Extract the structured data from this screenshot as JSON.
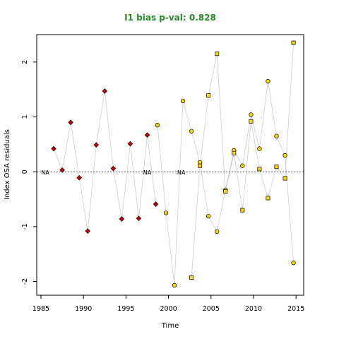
{
  "chart_data": {
    "type": "scatter",
    "title": "I1 bias p-val: 0.828",
    "xlabel": "Time",
    "ylabel": "Index OSA residuals",
    "xlim": [
      1984.5,
      2015.9
    ],
    "ylim": [
      -2.25,
      2.5
    ],
    "x_ticks": [
      1985,
      1990,
      1995,
      2000,
      2005,
      2010,
      2015
    ],
    "y_ticks": [
      -2,
      -1,
      0,
      1,
      2
    ],
    "reference_line": 0,
    "grid": false,
    "colors": {
      "title": "#228B22",
      "red_points": "#CC0000",
      "yellow_points": "#FFD700",
      "lines": "#CCCCCC",
      "reference": "#555555"
    },
    "na_labels": [
      {
        "x": 1985.5,
        "text": "NA"
      },
      {
        "x": 1997.5,
        "text": "NA"
      },
      {
        "x": 2001.5,
        "text": "NA"
      }
    ],
    "series": [
      {
        "marker": "diamond",
        "color": "#CC0000",
        "points": [
          [
            1986.5,
            0.42
          ],
          [
            1987.5,
            0.03
          ],
          [
            1988.5,
            0.9
          ],
          [
            1989.5,
            -0.11
          ],
          [
            1990.5,
            -1.08
          ],
          [
            1991.5,
            0.49
          ],
          [
            1992.5,
            1.47
          ],
          [
            1993.5,
            0.06
          ],
          [
            1994.5,
            -0.86
          ],
          [
            1995.5,
            0.51
          ],
          [
            1996.5,
            -0.85
          ],
          [
            1997.5,
            0.67
          ],
          [
            1998.5,
            -0.59
          ]
        ]
      },
      {
        "marker": "circle",
        "color": "#FFD700",
        "points": [
          [
            1998.7,
            0.85
          ],
          [
            1999.7,
            -0.75
          ],
          [
            2000.7,
            -2.07
          ],
          [
            2001.7,
            1.29
          ],
          [
            2002.7,
            0.74
          ],
          [
            2003.7,
            0.17
          ],
          [
            2004.7,
            -0.81
          ],
          [
            2005.7,
            -1.09
          ],
          [
            2006.7,
            -0.33
          ],
          [
            2007.7,
            0.39
          ],
          [
            2008.7,
            0.11
          ],
          [
            2009.7,
            1.04
          ],
          [
            2010.7,
            0.42
          ],
          [
            2011.7,
            1.65
          ],
          [
            2012.7,
            0.65
          ],
          [
            2013.7,
            0.3
          ],
          [
            2014.7,
            -1.66
          ]
        ]
      },
      {
        "marker": "square",
        "color": "#FFD700",
        "points": [
          [
            2002.7,
            -1.93
          ],
          [
            2003.7,
            0.11
          ],
          [
            2004.7,
            1.39
          ],
          [
            2005.7,
            2.15
          ],
          [
            2006.7,
            -0.36
          ],
          [
            2007.7,
            0.34
          ],
          [
            2008.7,
            -0.7
          ],
          [
            2009.7,
            0.92
          ],
          [
            2010.7,
            0.05
          ],
          [
            2011.7,
            -0.48
          ],
          [
            2012.7,
            0.09
          ],
          [
            2013.7,
            -0.12
          ],
          [
            2014.7,
            2.35
          ]
        ]
      }
    ]
  }
}
